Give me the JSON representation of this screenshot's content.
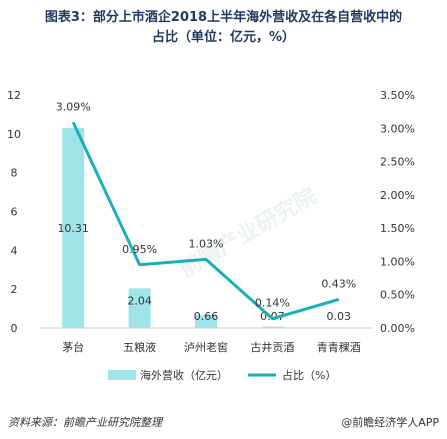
{
  "title_line1": "图表3：部分上市酒企2018上半年海外营收及在各自营收中的",
  "title_line2": "占比（单位：亿元，%）",
  "source": "资料来源：前瞻产业研究院整理",
  "brand": "@前瞻经济学人APP",
  "watermark": "前瞻产业研究院",
  "colors": {
    "bar": "#9fe4e8",
    "line": "#1ab0b8",
    "text": "#333333",
    "title": "#1f3a5f"
  },
  "chart_data": {
    "type": "bar+line",
    "categories": [
      "茅台",
      "五粮液",
      "泸州老窖",
      "古井贡酒",
      "青青稞酒"
    ],
    "series": [
      {
        "name": "海外营收（亿元）",
        "kind": "bar",
        "axis": "left",
        "values": [
          10.31,
          2.04,
          0.66,
          0.07,
          0.03
        ],
        "labels": [
          "10.31",
          "2.04",
          "0.66",
          "0.07",
          "0.03"
        ]
      },
      {
        "name": "占比（%）",
        "kind": "line",
        "axis": "right",
        "values": [
          3.09,
          0.95,
          1.03,
          0.14,
          0.43
        ],
        "labels": [
          "3.09%",
          "0.95%",
          "1.03%",
          "0.14%",
          "0.43%"
        ]
      }
    ],
    "y_left": {
      "range": [
        0,
        12
      ],
      "ticks": [
        0,
        2,
        4,
        6,
        8,
        10,
        12
      ]
    },
    "y_right": {
      "range": [
        0,
        3.5
      ],
      "ticks": [
        "0.00%",
        "0.50%",
        "1.00%",
        "1.50%",
        "2.00%",
        "2.50%",
        "3.00%",
        "3.50%"
      ]
    },
    "legend_position": "bottom",
    "grid": false
  }
}
